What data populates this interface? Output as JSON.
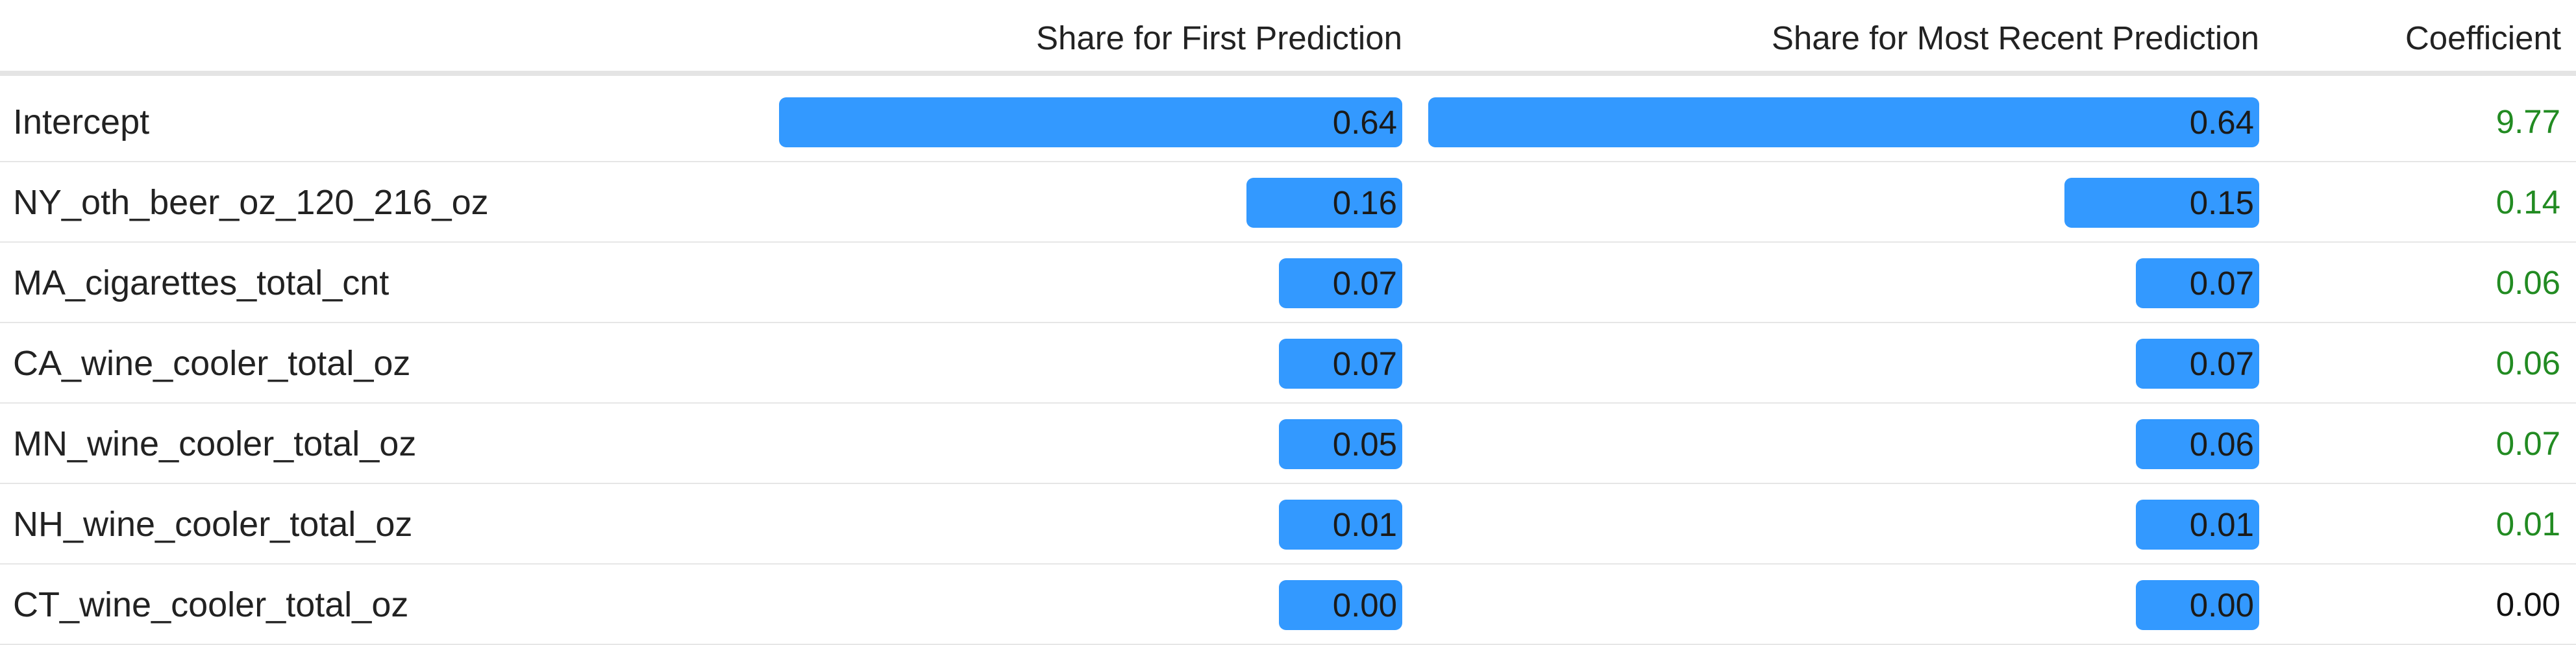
{
  "colors": {
    "bar": "#3399ff",
    "positive_coef": "#228b22",
    "zero_coef": "#111111"
  },
  "columns": {
    "feature": "",
    "first_share": "Share for First Prediction",
    "recent_share": "Share for Most Recent Prediction",
    "coefficient": "Coefficient"
  },
  "rows": [
    {
      "feature": "Intercept",
      "first_share": "0.64",
      "first_value": 0.64,
      "recent_share": "0.64",
      "recent_value": 0.64,
      "coefficient": "9.77",
      "coef_status": "positive"
    },
    {
      "feature": "NY_oth_beer_oz_120_216_oz",
      "first_share": "0.16",
      "first_value": 0.16,
      "recent_share": "0.15",
      "recent_value": 0.15,
      "coefficient": "0.14",
      "coef_status": "positive"
    },
    {
      "feature": "MA_cigarettes_total_cnt",
      "first_share": "0.07",
      "first_value": 0.07,
      "recent_share": "0.07",
      "recent_value": 0.07,
      "coefficient": "0.06",
      "coef_status": "positive"
    },
    {
      "feature": "CA_wine_cooler_total_oz",
      "first_share": "0.07",
      "first_value": 0.07,
      "recent_share": "0.07",
      "recent_value": 0.07,
      "coefficient": "0.06",
      "coef_status": "positive"
    },
    {
      "feature": "MN_wine_cooler_total_oz",
      "first_share": "0.05",
      "first_value": 0.05,
      "recent_share": "0.06",
      "recent_value": 0.06,
      "coefficient": "0.07",
      "coef_status": "positive"
    },
    {
      "feature": "NH_wine_cooler_total_oz",
      "first_share": "0.01",
      "first_value": 0.01,
      "recent_share": "0.01",
      "recent_value": 0.01,
      "coefficient": "0.01",
      "coef_status": "positive"
    },
    {
      "feature": "CT_wine_cooler_total_oz",
      "first_share": "0.00",
      "first_value": 0.0,
      "recent_share": "0.00",
      "recent_value": 0.0,
      "coefficient": "0.00",
      "coef_status": "zero"
    }
  ]
}
